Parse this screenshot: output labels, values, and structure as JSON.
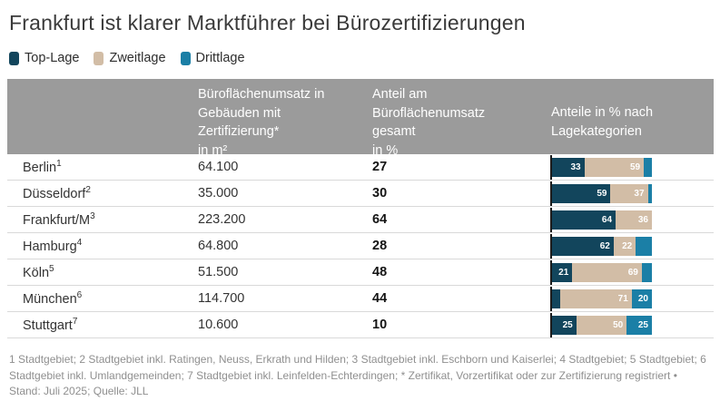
{
  "title": "Frankfurt ist klarer Marktführer bei Bürozertifizierungen",
  "colors": {
    "top_lage": "#12455c",
    "zweitlage": "#d2bda6",
    "drittlage": "#1b7fa6",
    "header_bg": "#9b9b9b",
    "row_separator": "#d9d9d9",
    "footnote_text": "#8f8f8f"
  },
  "legend": {
    "items": [
      {
        "label": "Top-Lage",
        "color": "#12455c"
      },
      {
        "label": "Zweitlage",
        "color": "#d2bda6"
      },
      {
        "label": "Drittlage",
        "color": "#1b7fa6"
      }
    ]
  },
  "table": {
    "headers": {
      "city": "",
      "volume": "Büroflächenumsatz in\nGebäuden mit\nZertifizierung*\nin m²",
      "share": "Anteil am\nBüroflächenumsatz\ngesamt\nin %",
      "split": "Anteile in % nach\nLagekategorien"
    },
    "rows": [
      {
        "city": "Berlin",
        "footnote_ref": "1",
        "volume": "64.100",
        "share": "27",
        "segments": [
          {
            "pct": 33,
            "label": "33"
          },
          {
            "pct": 59,
            "label": "59"
          },
          {
            "pct": 8,
            "label": ""
          }
        ]
      },
      {
        "city": "Düsseldorf",
        "footnote_ref": "2",
        "volume": "35.000",
        "share": "30",
        "segments": [
          {
            "pct": 59,
            "label": "59"
          },
          {
            "pct": 37,
            "label": "37"
          },
          {
            "pct": 4,
            "label": ""
          }
        ]
      },
      {
        "city": "Frankfurt/M",
        "footnote_ref": "3",
        "volume": "223.200",
        "share": "64",
        "segments": [
          {
            "pct": 64,
            "label": "64"
          },
          {
            "pct": 36,
            "label": "36"
          },
          {
            "pct": 0,
            "label": ""
          }
        ]
      },
      {
        "city": "Hamburg",
        "footnote_ref": "4",
        "volume": "64.800",
        "share": "28",
        "segments": [
          {
            "pct": 62,
            "label": "62"
          },
          {
            "pct": 22,
            "label": "22"
          },
          {
            "pct": 16,
            "label": ""
          }
        ]
      },
      {
        "city": "Köln",
        "footnote_ref": "5",
        "volume": "51.500",
        "share": "48",
        "segments": [
          {
            "pct": 21,
            "label": "21"
          },
          {
            "pct": 69,
            "label": "69"
          },
          {
            "pct": 10,
            "label": ""
          }
        ]
      },
      {
        "city": "München",
        "footnote_ref": "6",
        "volume": "114.700",
        "share": "44",
        "segments": [
          {
            "pct": 9,
            "label": ""
          },
          {
            "pct": 71,
            "label": "71"
          },
          {
            "pct": 20,
            "label": "20"
          }
        ]
      },
      {
        "city": "Stuttgart",
        "footnote_ref": "7",
        "volume": "10.600",
        "share": "10",
        "segments": [
          {
            "pct": 25,
            "label": "25"
          },
          {
            "pct": 50,
            "label": "50"
          },
          {
            "pct": 25,
            "label": "25"
          }
        ]
      }
    ]
  },
  "chart_data": {
    "type": "bar",
    "subtype": "horizontal-stacked",
    "title": "Frankfurt ist klarer Marktführer bei Bürozertifizierungen",
    "categories": [
      "Berlin",
      "Düsseldorf",
      "Frankfurt/M",
      "Hamburg",
      "Köln",
      "München",
      "Stuttgart"
    ],
    "series": [
      {
        "name": "Top-Lage",
        "color": "#12455c",
        "values": [
          33,
          59,
          64,
          62,
          21,
          9,
          25
        ]
      },
      {
        "name": "Zweitlage",
        "color": "#d2bda6",
        "values": [
          59,
          37,
          36,
          22,
          69,
          71,
          50
        ]
      },
      {
        "name": "Drittlage",
        "color": "#1b7fa6",
        "values": [
          8,
          4,
          0,
          16,
          10,
          20,
          25
        ]
      }
    ],
    "table_columns": [
      {
        "header": "Büroflächenumsatz in Gebäuden mit Zertifizierung* in m²",
        "values": [
          "64.100",
          "35.000",
          "223.200",
          "64.800",
          "51.500",
          "114.700",
          "10.600"
        ]
      },
      {
        "header": "Anteil am Büroflächenumsatz gesamt in %",
        "values": [
          27,
          30,
          64,
          28,
          48,
          44,
          10
        ]
      }
    ],
    "xlim": [
      0,
      100
    ],
    "unit": "%",
    "grid": false,
    "legend_position": "top-left"
  },
  "footnotes": {
    "notes": "1 Stadtgebiet; 2 Stadtgebiet inkl. Ratingen, Neuss, Erkrath und Hilden; 3 Stadtgebiet inkl. Eschborn und Kaiserlei; 4 Stadtgebiet; 5 Stadtgebiet; 6 Stadtgebiet inkl. Umlandgemeinden; 7 Stadtgebiet inkl. Leinfelden-Echterdingen; * Zertifikat, Vorzertifikat oder zur Zertifizierung registriert •",
    "source": "Stand: Juli 2025; Quelle: JLL"
  }
}
